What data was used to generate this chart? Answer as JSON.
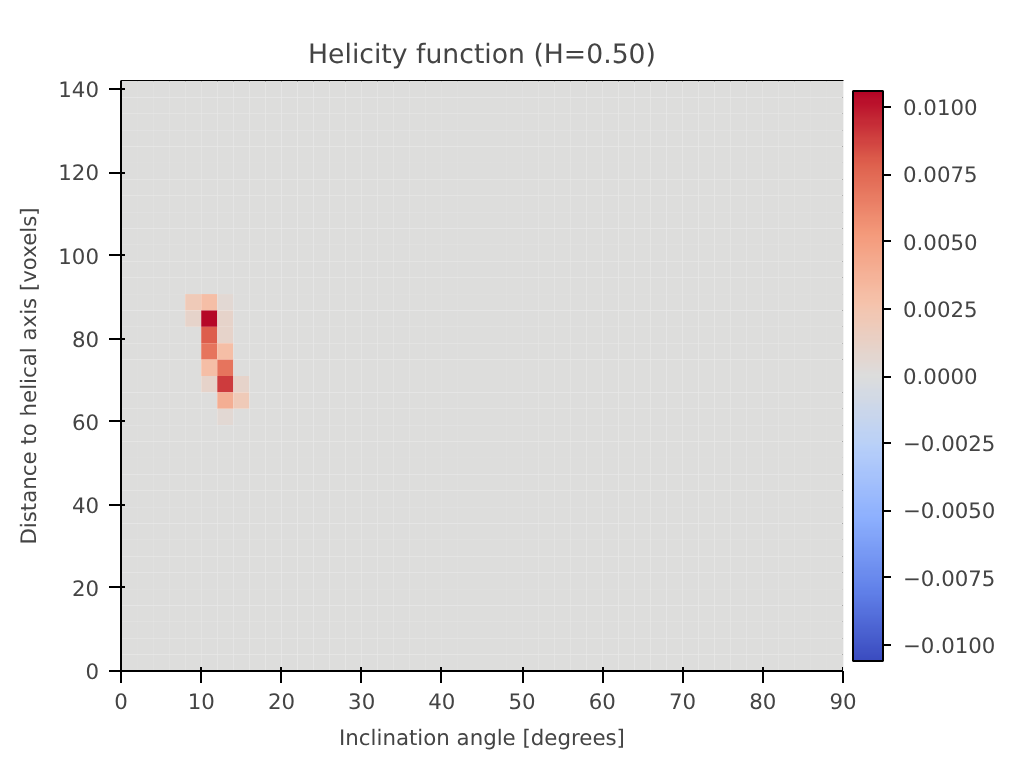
{
  "chart_data": {
    "type": "heatmap",
    "title": "Helicity function (H=0.50)",
    "xlabel": "Inclination angle [degrees]",
    "ylabel": "Distance to helical axis [voxels]",
    "xlim": [
      0,
      90
    ],
    "ylim": [
      0,
      142
    ],
    "xticks": [
      0,
      10,
      20,
      30,
      40,
      50,
      60,
      70,
      80,
      90
    ],
    "yticks": [
      0,
      20,
      40,
      60,
      80,
      100,
      120,
      140
    ],
    "clim": [
      -0.0106,
      0.0106
    ],
    "cticks": [
      {
        "value": -0.01,
        "label": "−0.0100"
      },
      {
        "value": -0.0075,
        "label": "−0.0075"
      },
      {
        "value": -0.005,
        "label": "−0.0050"
      },
      {
        "value": -0.0025,
        "label": "−0.0025"
      },
      {
        "value": 0,
        "label": "0.0000"
      },
      {
        "value": 0.0025,
        "label": "0.0025"
      },
      {
        "value": 0.005,
        "label": "0.0050"
      },
      {
        "value": 0.0075,
        "label": "0.0075"
      },
      {
        "value": 0.01,
        "label": "0.0100"
      }
    ],
    "cells": [
      [
        0,
        0,
        0,
        0,
        0,
        0,
        0,
        0,
        0,
        0,
        0,
        0,
        0,
        0,
        0,
        0,
        0,
        0,
        0,
        0,
        0,
        0,
        0,
        0,
        0,
        0,
        0,
        0,
        0,
        0,
        0,
        0,
        0,
        0,
        0,
        0,
        0,
        0,
        0,
        0,
        0,
        0,
        0,
        0,
        0
      ],
      [
        0,
        0,
        0,
        0,
        0,
        0,
        0,
        0,
        0,
        0,
        0,
        0,
        0,
        0,
        0,
        0,
        0,
        0,
        0,
        0,
        0,
        0,
        0,
        0,
        0,
        0,
        0,
        0,
        0,
        0,
        0,
        0,
        0,
        0,
        0,
        0,
        0,
        0,
        0,
        0,
        0,
        0,
        0,
        0,
        0
      ],
      [
        0,
        0,
        0,
        0,
        0,
        0,
        0,
        0,
        0,
        0,
        0,
        0,
        0,
        0,
        0,
        0,
        0,
        0,
        0,
        0,
        0,
        0,
        0,
        0,
        0,
        0,
        0,
        0,
        0,
        0,
        0,
        0,
        0,
        0,
        0,
        0,
        0,
        0,
        0,
        0,
        0,
        0,
        0,
        0,
        0
      ],
      [
        0,
        0,
        0,
        0,
        0,
        0,
        0,
        0,
        0,
        0,
        0,
        0,
        0,
        0,
        0,
        0,
        0,
        0,
        0,
        0,
        0,
        0,
        0,
        0,
        0,
        0,
        0,
        0,
        0,
        0,
        0,
        0,
        0,
        0,
        0,
        0,
        0,
        0,
        0,
        0,
        0,
        0,
        0,
        0,
        0
      ],
      [
        0,
        0,
        0,
        0,
        0,
        0,
        0,
        0,
        0,
        0,
        0,
        0,
        0,
        0,
        0,
        0,
        0,
        0,
        0,
        0,
        0,
        0,
        0,
        0,
        0,
        0,
        0,
        0,
        0,
        0,
        0,
        0,
        0,
        0,
        0,
        0,
        0,
        0,
        0,
        0,
        0,
        0,
        0,
        0,
        0
      ],
      [
        0,
        0,
        0,
        0,
        0,
        0,
        0,
        0,
        0,
        0,
        0,
        0,
        0,
        0,
        0,
        0,
        0,
        0,
        0,
        0,
        0,
        0,
        0,
        0,
        0,
        0,
        0,
        0,
        0,
        0,
        0,
        0,
        0,
        0,
        0,
        0,
        0,
        0,
        0,
        0,
        0,
        0,
        0,
        0,
        0
      ],
      [
        0,
        0,
        0,
        0,
        0,
        0,
        0,
        0,
        0,
        0,
        0,
        0,
        0,
        0,
        0,
        0,
        0,
        0,
        0,
        0,
        0,
        0,
        0,
        0,
        0,
        0,
        0,
        0,
        0,
        0,
        0,
        0,
        0,
        0,
        0,
        0,
        0,
        0,
        0,
        0,
        0,
        0,
        0,
        0,
        0
      ],
      [
        0,
        0,
        0,
        0,
        0,
        0,
        0,
        0,
        0,
        0,
        0,
        0,
        0,
        0,
        0,
        0,
        0,
        0,
        0,
        0,
        0,
        0,
        0,
        0,
        0,
        0,
        0,
        0,
        0,
        0,
        0,
        0,
        0,
        0,
        0,
        0,
        0,
        0,
        0,
        0,
        0,
        0,
        0,
        0,
        0
      ],
      [
        0,
        0,
        0,
        0,
        0,
        0,
        0,
        0,
        0,
        0,
        0,
        0,
        0,
        0,
        0,
        0,
        0,
        0,
        0,
        0,
        0,
        0,
        0,
        0,
        0,
        0,
        0,
        0,
        0,
        0,
        0,
        0,
        0,
        0,
        0,
        0,
        0,
        0,
        0,
        0,
        0,
        0,
        0,
        0,
        0
      ],
      [
        0,
        0,
        0,
        0,
        0,
        0,
        0,
        0,
        0,
        0,
        0,
        0,
        0,
        0,
        0,
        0,
        0,
        0,
        0,
        0,
        0,
        0,
        0,
        0,
        0,
        0,
        0,
        0,
        0,
        0,
        0,
        0,
        0,
        0,
        0,
        0,
        0,
        0,
        0,
        0,
        0,
        0,
        0,
        0,
        0
      ],
      [
        0,
        0,
        0,
        0,
        0,
        0,
        0,
        0,
        0,
        0,
        0,
        0,
        0,
        0,
        0,
        0,
        0,
        0,
        0,
        0,
        0,
        0,
        0,
        0,
        0,
        0,
        0,
        0,
        0,
        0,
        0,
        0,
        0,
        0,
        0,
        0,
        0,
        0,
        0,
        0,
        0,
        0,
        0,
        0,
        0
      ],
      [
        0,
        0,
        0,
        0,
        0,
        0,
        0,
        0,
        0,
        0,
        0,
        0,
        0,
        0,
        0,
        0,
        0,
        0,
        0,
        0,
        0,
        0,
        0,
        0,
        0,
        0,
        0,
        0,
        0,
        0,
        0,
        0,
        0,
        0,
        0,
        0,
        0,
        0,
        0,
        0,
        0,
        0,
        0,
        0,
        0
      ],
      [
        0,
        0,
        0,
        0,
        0,
        0,
        0,
        0,
        0,
        0,
        0,
        0,
        0,
        0,
        0,
        0,
        0,
        0,
        0,
        0,
        0,
        0,
        0,
        0,
        0,
        0,
        0,
        0,
        0,
        0,
        0,
        0,
        0,
        0,
        0,
        0,
        0,
        0,
        0,
        0,
        0,
        0,
        0,
        0,
        0
      ],
      [
        0,
        0,
        0,
        0,
        0.002,
        0.003,
        0.0005,
        0,
        0,
        0,
        0,
        0,
        0,
        0,
        0,
        0,
        0,
        0,
        0,
        0,
        0,
        0,
        0,
        0,
        0,
        0,
        0,
        0,
        0,
        0,
        0,
        0,
        0,
        0,
        0,
        0,
        0,
        0,
        0,
        0,
        0,
        0,
        0,
        0,
        0
      ],
      [
        0,
        0,
        0,
        0,
        0.001,
        0.0105,
        0.001,
        0,
        0,
        0,
        0,
        0,
        0,
        0,
        0,
        0,
        0,
        0,
        0,
        0,
        0,
        0,
        0,
        0,
        0,
        0,
        0,
        0,
        0,
        0,
        0,
        0,
        0,
        0,
        0,
        0,
        0,
        0,
        0,
        0,
        0,
        0,
        0,
        0,
        0
      ],
      [
        0,
        0,
        0,
        0,
        0,
        0.008,
        0.001,
        0,
        0,
        0,
        0,
        0,
        0,
        0,
        0,
        0,
        0,
        0,
        0,
        0,
        0,
        0,
        0,
        0,
        0,
        0,
        0,
        0,
        0,
        0,
        0,
        0,
        0,
        0,
        0,
        0,
        0,
        0,
        0,
        0,
        0,
        0,
        0,
        0,
        0
      ],
      [
        0,
        0,
        0,
        0,
        0,
        0.007,
        0.003,
        0,
        0,
        0,
        0,
        0,
        0,
        0,
        0,
        0,
        0,
        0,
        0,
        0,
        0,
        0,
        0,
        0,
        0,
        0,
        0,
        0,
        0,
        0,
        0,
        0,
        0,
        0,
        0,
        0,
        0,
        0,
        0,
        0,
        0,
        0,
        0,
        0,
        0
      ],
      [
        0,
        0,
        0,
        0,
        0,
        0.003,
        0.007,
        0,
        0,
        0,
        0,
        0,
        0,
        0,
        0,
        0,
        0,
        0,
        0,
        0,
        0,
        0,
        0,
        0,
        0,
        0,
        0,
        0,
        0,
        0,
        0,
        0,
        0,
        0,
        0,
        0,
        0,
        0,
        0,
        0,
        0,
        0,
        0,
        0,
        0
      ],
      [
        0,
        0,
        0,
        0,
        0,
        0.001,
        0.009,
        0.001,
        0,
        0,
        0,
        0,
        0,
        0,
        0,
        0,
        0,
        0,
        0,
        0,
        0,
        0,
        0,
        0,
        0,
        0,
        0,
        0,
        0,
        0,
        0,
        0,
        0,
        0,
        0,
        0,
        0,
        0,
        0,
        0,
        0,
        0,
        0,
        0,
        0
      ],
      [
        0,
        0,
        0,
        0,
        0,
        0,
        0.004,
        0.002,
        0,
        0,
        0,
        0,
        0,
        0,
        0,
        0,
        0,
        0,
        0,
        0,
        0,
        0,
        0,
        0,
        0,
        0,
        0,
        0,
        0,
        0,
        0,
        0,
        0,
        0,
        0,
        0,
        0,
        0,
        0,
        0,
        0,
        0,
        0,
        0,
        0
      ],
      [
        0,
        0,
        0,
        0,
        0,
        0,
        0.0005,
        0,
        0,
        0,
        0,
        0,
        0,
        0,
        0,
        0,
        0,
        0,
        0,
        0,
        0,
        0,
        0,
        0,
        0,
        0,
        0,
        0,
        0,
        0,
        0,
        0,
        0,
        0,
        0,
        0,
        0,
        0,
        0,
        0,
        0,
        0,
        0,
        0,
        0
      ],
      [
        0,
        0,
        0,
        0,
        0,
        0,
        0,
        0,
        0,
        0,
        0,
        0,
        0,
        0,
        0,
        0,
        0,
        0,
        0,
        0,
        0,
        0,
        0,
        0,
        0,
        0,
        0,
        0,
        0,
        0,
        0,
        0,
        0,
        0,
        0,
        0,
        0,
        0,
        0,
        0,
        0,
        0,
        0,
        0,
        0
      ],
      [
        0,
        0,
        0,
        0,
        0,
        0,
        0,
        0,
        0,
        0,
        0,
        0,
        0,
        0,
        0,
        0,
        0,
        0,
        0,
        0,
        0,
        0,
        0,
        0,
        0,
        0,
        0,
        0,
        0,
        0,
        0,
        0,
        0,
        0,
        0,
        0,
        0,
        0,
        0,
        0,
        0,
        0,
        0,
        0,
        0
      ],
      [
        0,
        0,
        0,
        0,
        0,
        0,
        0,
        0,
        0,
        0,
        0,
        0,
        0,
        0,
        0,
        0,
        0,
        0,
        0,
        0,
        0,
        0,
        0,
        0,
        0,
        0,
        0,
        0,
        0,
        0,
        0,
        0,
        0,
        0,
        0,
        0,
        0,
        0,
        0,
        0,
        0,
        0,
        0,
        0,
        0
      ],
      [
        0,
        0,
        0,
        0,
        0,
        0,
        0,
        0,
        0,
        0,
        0,
        0,
        0,
        0,
        0,
        0,
        0,
        0,
        0,
        0,
        0,
        0,
        0,
        0,
        0,
        0,
        0,
        0,
        0,
        0,
        0,
        0,
        0,
        0,
        0,
        0,
        0,
        0,
        0,
        0,
        0,
        0,
        0,
        0,
        0
      ],
      [
        0,
        0,
        0,
        0,
        0,
        0,
        0,
        0,
        0,
        0,
        0,
        0,
        0,
        0,
        0,
        0,
        0,
        0,
        0,
        0,
        0,
        0,
        0,
        0,
        0,
        0,
        0,
        0,
        0,
        0,
        0,
        0,
        0,
        0,
        0,
        0,
        0,
        0,
        0,
        0,
        0,
        0,
        0,
        0,
        0
      ],
      [
        0,
        0,
        0,
        0,
        0,
        0,
        0,
        0,
        0,
        0,
        0,
        0,
        0,
        0,
        0,
        0,
        0,
        0,
        0,
        0,
        0,
        0,
        0,
        0,
        0,
        0,
        0,
        0,
        0,
        0,
        0,
        0,
        0,
        0,
        0,
        0,
        0,
        0,
        0,
        0,
        0,
        0,
        0,
        0,
        0
      ],
      [
        0,
        0,
        0,
        0,
        0,
        0,
        0,
        0,
        0,
        0,
        0,
        0,
        0,
        0,
        0,
        0,
        0,
        0,
        0,
        0,
        0,
        0,
        0,
        0,
        0,
        0,
        0,
        0,
        0,
        0,
        0,
        0,
        0,
        0,
        0,
        0,
        0,
        0,
        0,
        0,
        0,
        0,
        0,
        0,
        0
      ],
      [
        0,
        0,
        0,
        0,
        0,
        0,
        0,
        0,
        0,
        0,
        0,
        0,
        0,
        0,
        0,
        0,
        0,
        0,
        0,
        0,
        0,
        0,
        0,
        0,
        0,
        0,
        0,
        0,
        0,
        0,
        0,
        0,
        0,
        0,
        0,
        0,
        0,
        0,
        0,
        0,
        0,
        0,
        0,
        0,
        0
      ],
      [
        0,
        0,
        0,
        0,
        0,
        0,
        0,
        0,
        0,
        0,
        0,
        0,
        0,
        0,
        0,
        0,
        0,
        0,
        0,
        0,
        0,
        0,
        0,
        0,
        0,
        0,
        0,
        0,
        0,
        0,
        0,
        0,
        0,
        0,
        0,
        0,
        0,
        0,
        0,
        0,
        0,
        0,
        0,
        0,
        0
      ],
      [
        0,
        0,
        0,
        0,
        0,
        0,
        0,
        0,
        0,
        0,
        0,
        0,
        0,
        0,
        0,
        0,
        0,
        0,
        0,
        0,
        0,
        0,
        0,
        0,
        0,
        0,
        0,
        0,
        0,
        0,
        0,
        0,
        0,
        0,
        0,
        0,
        0,
        0,
        0,
        0,
        0,
        0,
        0,
        0,
        0
      ],
      [
        0,
        0,
        0,
        0,
        0,
        0,
        0,
        0,
        0,
        0,
        0,
        0,
        0,
        0,
        0,
        0,
        0,
        0,
        0,
        0,
        0,
        0,
        0,
        0,
        0,
        0,
        0,
        0,
        0,
        0,
        0,
        0,
        0,
        0,
        0,
        0,
        0,
        0,
        0,
        0,
        0,
        0,
        0,
        0,
        0
      ],
      [
        0,
        0,
        0,
        0,
        0,
        0,
        0,
        0,
        0,
        0,
        0,
        0,
        0,
        0,
        0,
        0,
        0,
        0,
        0,
        0,
        0,
        0,
        0,
        0,
        0,
        0,
        0,
        0,
        0,
        0,
        0,
        0,
        0,
        0,
        0,
        0,
        0,
        0,
        0,
        0,
        0,
        0,
        0,
        0,
        0
      ],
      [
        0,
        0,
        0,
        0,
        0,
        0,
        0,
        0,
        0,
        0,
        0,
        0,
        0,
        0,
        0,
        0,
        0,
        0,
        0,
        0,
        0,
        0,
        0,
        0,
        0,
        0,
        0,
        0,
        0,
        0,
        0,
        0,
        0,
        0,
        0,
        0,
        0,
        0,
        0,
        0,
        0,
        0,
        0,
        0,
        0
      ],
      [
        0,
        0,
        0,
        0,
        0,
        0,
        0,
        0,
        0,
        0,
        0,
        0,
        0,
        0,
        0,
        0,
        0,
        0,
        0,
        0,
        0,
        0,
        0,
        0,
        0,
        0,
        0,
        0,
        0,
        0,
        0,
        0,
        0,
        0,
        0,
        0,
        0,
        0,
        0,
        0,
        0,
        0,
        0,
        0,
        0
      ],
      [
        0,
        0,
        0,
        0,
        0,
        0,
        0,
        0,
        0,
        0,
        0,
        0,
        0,
        0,
        0,
        0,
        0,
        0,
        0,
        0,
        0,
        0,
        0,
        0,
        0,
        0,
        0,
        0,
        0,
        0,
        0,
        0,
        0,
        0,
        0,
        0,
        0,
        0,
        0,
        0,
        0,
        0,
        0,
        0,
        0
      ]
    ]
  }
}
